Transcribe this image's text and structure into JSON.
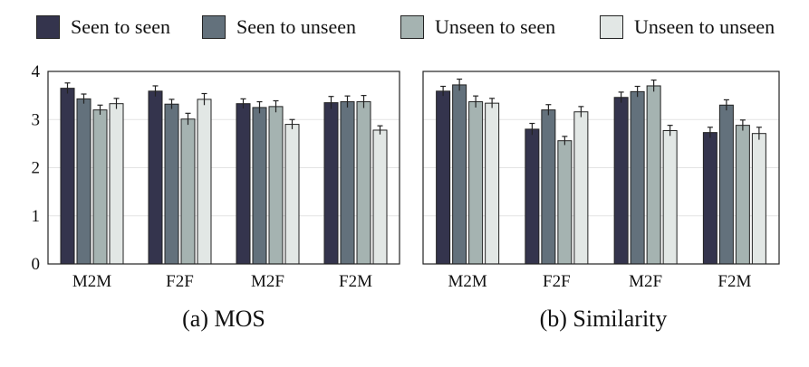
{
  "chart_data": [
    {
      "type": "bar",
      "title": "(a)  MOS",
      "categories": [
        "M2M",
        "F2F",
        "M2F",
        "F2M"
      ],
      "ylim": [
        0,
        4
      ],
      "yticks": [
        0,
        1,
        2,
        3,
        4
      ],
      "grid": true,
      "legend_placement": "top",
      "series": [
        {
          "name": "Seen to seen",
          "values": [
            3.65,
            3.59,
            3.33,
            3.35
          ],
          "errors": [
            0.11,
            0.11,
            0.1,
            0.13
          ]
        },
        {
          "name": "Seen to unseen",
          "values": [
            3.43,
            3.32,
            3.25,
            3.37
          ],
          "errors": [
            0.1,
            0.1,
            0.12,
            0.12
          ]
        },
        {
          "name": "Unseen to seen",
          "values": [
            3.2,
            3.01,
            3.27,
            3.37
          ],
          "errors": [
            0.1,
            0.12,
            0.12,
            0.13
          ]
        },
        {
          "name": "Unseen to unseen",
          "values": [
            3.33,
            3.42,
            2.9,
            2.78
          ],
          "errors": [
            0.11,
            0.12,
            0.1,
            0.09
          ]
        }
      ]
    },
    {
      "type": "bar",
      "title": "(b)  Similarity",
      "categories": [
        "M2M",
        "F2F",
        "M2F",
        "F2M"
      ],
      "ylim": [
        0,
        4
      ],
      "yticks": [],
      "grid": true,
      "legend_placement": "top",
      "series": [
        {
          "name": "Seen to seen",
          "values": [
            3.59,
            2.8,
            3.46,
            2.73
          ],
          "errors": [
            0.1,
            0.12,
            0.11,
            0.11
          ]
        },
        {
          "name": "Seen to unseen",
          "values": [
            3.72,
            3.2,
            3.58,
            3.3
          ],
          "errors": [
            0.12,
            0.11,
            0.11,
            0.11
          ]
        },
        {
          "name": "Unseen to seen",
          "values": [
            3.37,
            2.56,
            3.7,
            2.88
          ],
          "errors": [
            0.12,
            0.09,
            0.12,
            0.11
          ]
        },
        {
          "name": "Unseen to unseen",
          "values": [
            3.34,
            3.16,
            2.77,
            2.71
          ],
          "errors": [
            0.1,
            0.11,
            0.11,
            0.13
          ]
        }
      ]
    }
  ],
  "colors": {
    "series": [
      "#34344d",
      "#63717c",
      "#a5b3b1",
      "#e2e7e5"
    ],
    "grid": "#e4e4e4",
    "frame": "#222222"
  }
}
